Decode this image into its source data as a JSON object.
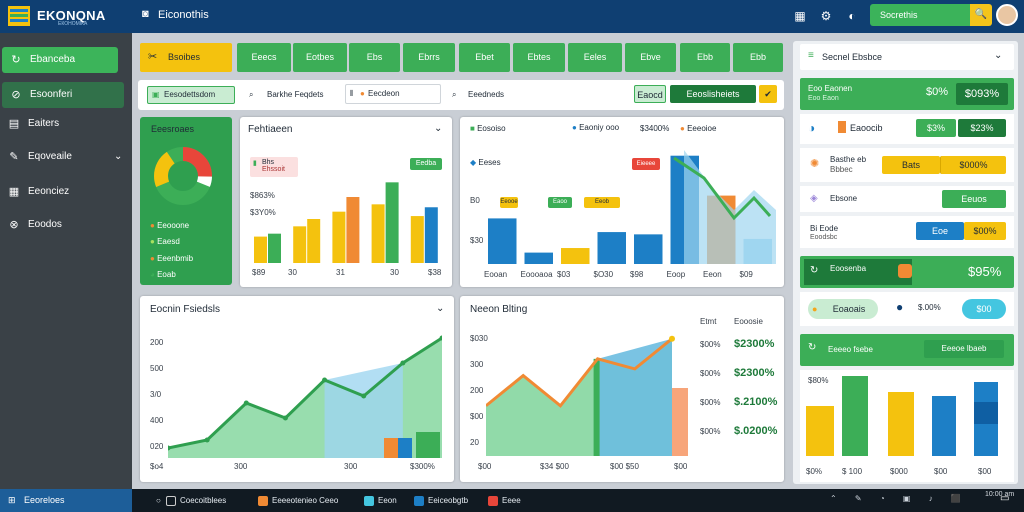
{
  "header": {
    "brand": "EKONQNA",
    "brand_sub": "ЕКОНОМІКА",
    "app_title": "Eiconothis",
    "search_label": "Socrethis",
    "search_button_icon": "search-icon"
  },
  "colors": {
    "accent": "#3cae57",
    "brand": "#0f3f72",
    "yellow": "#f4c20e",
    "blue": "#1d7fc6",
    "orange": "#f08a34"
  },
  "sidebar": {
    "items": [
      {
        "label": "Ebanceba",
        "icon": "refresh-icon"
      },
      {
        "label": "Esoonferi",
        "icon": "link-icon"
      },
      {
        "label": "Eaiters",
        "icon": "document-icon"
      },
      {
        "label": "Eqoveaile",
        "icon": "wrench-icon"
      },
      {
        "label": "Eeonciez",
        "icon": "calendar-icon"
      },
      {
        "label": "Eoodos",
        "icon": "settings-icon"
      }
    ]
  },
  "tabs": [
    "Bsoibes",
    "Eeecs",
    "Eotbes",
    "Ebs",
    "Ebrrs",
    "Ebet",
    "Ebtes",
    "Eeles",
    "Ebve",
    "Ebb"
  ],
  "filters": {
    "tag": "Eesodettsdom",
    "search1": "Barkhe Feqdets",
    "field": "Eecdeon",
    "search2": "Eeedneds",
    "btn1": "Eaocd",
    "btn2": "Eeoslisheiets"
  },
  "donut_card": {
    "title": "Eeesroaes",
    "legend": [
      "Eeooone",
      "Eaesd",
      "Eeenbmib",
      "Eoab"
    ]
  },
  "bar_card1": {
    "title": "Fehtiaeen",
    "chip": "Bhs",
    "chip_sub": "Ehssoit",
    "green_chip": "Eedba",
    "y_labels": [
      "$863%",
      "$3Y0%"
    ],
    "x_labels": [
      "$89",
      "30",
      "31",
      "30",
      "$38"
    ]
  },
  "mixed_card": {
    "legend": [
      "Eosoiso",
      "Eaoniy ooo",
      "$3400%",
      "Eeeoioe"
    ],
    "chip": "Eeses",
    "x_labels": [
      "Eooan",
      "Eoooaoa",
      "$03",
      "$O30",
      "$98",
      "Eoop",
      "Eeon",
      "$09"
    ],
    "y_labels": [
      "B0",
      "$30"
    ],
    "small_chips": [
      "Eeooe",
      "Eaoo",
      "Eeob",
      "Eieeee"
    ]
  },
  "area_card": {
    "title": "Eocnin Fsiedsls",
    "y_labels": [
      "200",
      "500",
      "3/0",
      "400",
      "020"
    ],
    "x_labels": [
      "$o4",
      "300",
      "300",
      "$300%"
    ]
  },
  "split_card": {
    "title": "Neeon Blting",
    "y_labels": [
      "$030",
      "300",
      "200",
      "$00",
      "20"
    ],
    "x_labels": [
      "$00",
      "$34 $00",
      "$00 $50",
      "$00"
    ],
    "table_header": [
      "Etmt",
      "Eooosie"
    ],
    "table_rows": [
      {
        "k": "$00%",
        "v": "$2300%"
      },
      {
        "k": "$00%",
        "v": "$2300%"
      },
      {
        "k": "$00%",
        "v": "$.2100%"
      },
      {
        "k": "$00%",
        "v": "$.0200%"
      }
    ]
  },
  "right_panel": {
    "title": "Secnel Ebsbce",
    "kpi_label": "Eoo Eaonen",
    "kpi_sub": "Eoo Eaon",
    "kpi_pct": "$0%",
    "kpi_value": "$093%",
    "row1": {
      "label": "Eaoocib",
      "a": "$3%",
      "b": "$23%"
    },
    "row2": {
      "label": "Basthe eb",
      "sub": "Bbbec",
      "a": "Bats",
      "b": "$000%"
    },
    "row3": {
      "label": "Ebsone",
      "a": "Eeuos"
    },
    "row4": {
      "label": "Bi Eode",
      "sub": "Eoodsbc",
      "a": "Eoe",
      "b": "$00%"
    },
    "banner": {
      "label": "Eoosenba",
      "value": "$95%"
    },
    "row5": {
      "a": "Eoaoais",
      "b": "$.00%",
      "c": "$00"
    },
    "bar_title": "Eeeeo fsebe",
    "bar_chip": "Eeeoe lbaeb",
    "bar_y": "$80%",
    "bar_x": [
      "$0%",
      "$ 100",
      "$000",
      "$00",
      "$00"
    ]
  },
  "taskbar": {
    "start": "Eeoreloes",
    "items": [
      "Coecoitblees",
      "Eeeeotenieo Ceeo",
      "Eeon",
      "Eeiceobgtb",
      "Eeee"
    ],
    "clock": "10:00 am"
  },
  "chart_data": [
    {
      "type": "bar",
      "title": "Fehtiaeen",
      "categories": [
        "$89",
        "30",
        "31",
        "30",
        "$38"
      ],
      "series": [
        {
          "values": [
            18,
            25,
            35,
            40,
            32
          ]
        },
        {
          "values": [
            20,
            30,
            45,
            55,
            38
          ]
        }
      ]
    },
    {
      "type": "bar",
      "title": "",
      "categories": [
        "Eooan",
        "Eoooaoa",
        "$03",
        "$O30",
        "$98",
        "Eoop",
        "Eeon",
        "$09"
      ],
      "series": [
        {
          "values": [
            40,
            10,
            14,
            28,
            26,
            95,
            60,
            22
          ]
        }
      ]
    },
    {
      "type": "area",
      "title": "Eocnin Fsiedsls",
      "x": [
        0,
        1,
        2,
        3,
        4,
        5,
        6,
        7
      ],
      "values": [
        10,
        18,
        55,
        40,
        78,
        62,
        95,
        120
      ]
    },
    {
      "type": "area",
      "title": "Neeon Blting",
      "x": [
        0,
        1,
        2,
        3,
        4,
        5
      ],
      "values": [
        30,
        48,
        30,
        58,
        52,
        70
      ]
    }
  ]
}
